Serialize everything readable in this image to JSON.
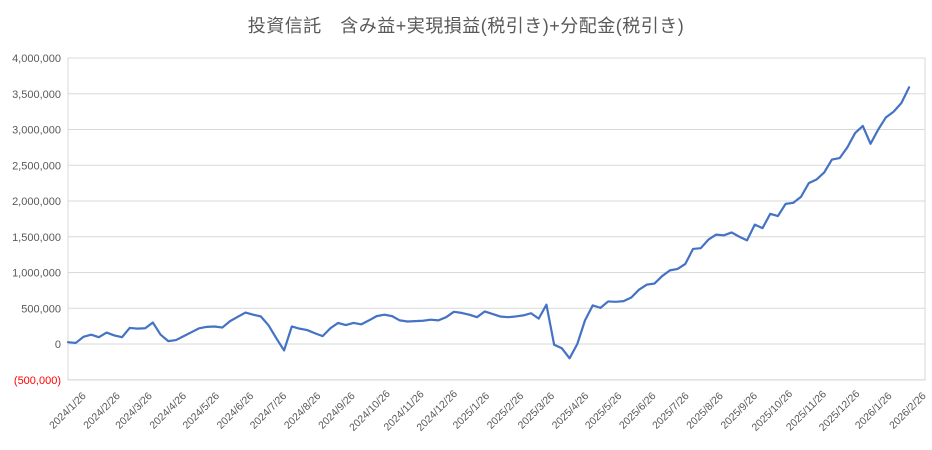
{
  "title": "投資信託　含み益+実現損益(税引き)+分配金(税引き)",
  "colors": {
    "series": "#4472C4",
    "gridline": "#D9D9D9",
    "axis_label": "#595959",
    "negative_label": "#FF0000",
    "background": "#FFFFFF"
  },
  "chart_data": {
    "type": "line",
    "title": "投資信託　含み益+実現損益(税引き)+分配金(税引き)",
    "xlabel": "",
    "ylabel": "",
    "legend": "none",
    "grid": true,
    "ylim": [
      -500000,
      4000000
    ],
    "y_ticks": [
      {
        "label": "4,000,000",
        "value": 4000000,
        "negative": false
      },
      {
        "label": "3,500,000",
        "value": 3500000,
        "negative": false
      },
      {
        "label": "3,000,000",
        "value": 3000000,
        "negative": false
      },
      {
        "label": "2,500,000",
        "value": 2500000,
        "negative": false
      },
      {
        "label": "2,000,000",
        "value": 2000000,
        "negative": false
      },
      {
        "label": "1,500,000",
        "value": 1500000,
        "negative": false
      },
      {
        "label": "1,000,000",
        "value": 1000000,
        "negative": false
      },
      {
        "label": "500,000",
        "value": 500000,
        "negative": false
      },
      {
        "label": "0",
        "value": 0,
        "negative": false
      },
      {
        "label": "(500,000)",
        "value": -500000,
        "negative": true
      }
    ],
    "x_tick_labels": [
      "2024/1/26",
      "2024/2/26",
      "2024/3/26",
      "2024/4/26",
      "2024/5/26",
      "2024/6/26",
      "2024/7/26",
      "2024/8/26",
      "2024/9/26",
      "2024/10/26",
      "2024/11/26",
      "2024/12/26",
      "2025/1/26",
      "2025/2/26",
      "2025/3/26",
      "2025/4/26",
      "2025/5/26",
      "2025/6/26",
      "2025/7/26",
      "2025/8/26",
      "2025/9/26",
      "2025/10/26",
      "2025/11/26",
      "2025/12/26",
      "2026/1/26",
      "2026/2/26"
    ],
    "series": [
      {
        "name": "含み益+実現損益(税引き)+分配金(税引き)",
        "x_start_date": "2024/1/26",
        "x_step_days": 7,
        "values": [
          25000,
          15000,
          100000,
          130000,
          95000,
          160000,
          120000,
          95000,
          225000,
          215000,
          220000,
          300000,
          130000,
          40000,
          55000,
          110000,
          165000,
          220000,
          240000,
          245000,
          230000,
          320000,
          380000,
          440000,
          410000,
          385000,
          260000,
          80000,
          -90000,
          245000,
          215000,
          195000,
          150000,
          110000,
          220000,
          295000,
          265000,
          295000,
          275000,
          330000,
          390000,
          410000,
          390000,
          330000,
          315000,
          320000,
          325000,
          340000,
          330000,
          375000,
          450000,
          435000,
          410000,
          375000,
          455000,
          420000,
          385000,
          375000,
          385000,
          400000,
          430000,
          355000,
          550000,
          -10000,
          -60000,
          -200000,
          0,
          330000,
          540000,
          505000,
          595000,
          590000,
          600000,
          650000,
          760000,
          830000,
          845000,
          950000,
          1030000,
          1050000,
          1120000,
          1330000,
          1340000,
          1460000,
          1530000,
          1520000,
          1560000,
          1500000,
          1450000,
          1670000,
          1620000,
          1820000,
          1790000,
          1960000,
          1975000,
          2060000,
          2250000,
          2300000,
          2400000,
          2580000,
          2600000,
          2750000,
          2950000,
          3050000,
          2800000,
          3000000,
          3170000,
          3250000,
          3370000,
          3590000
        ]
      }
    ]
  }
}
